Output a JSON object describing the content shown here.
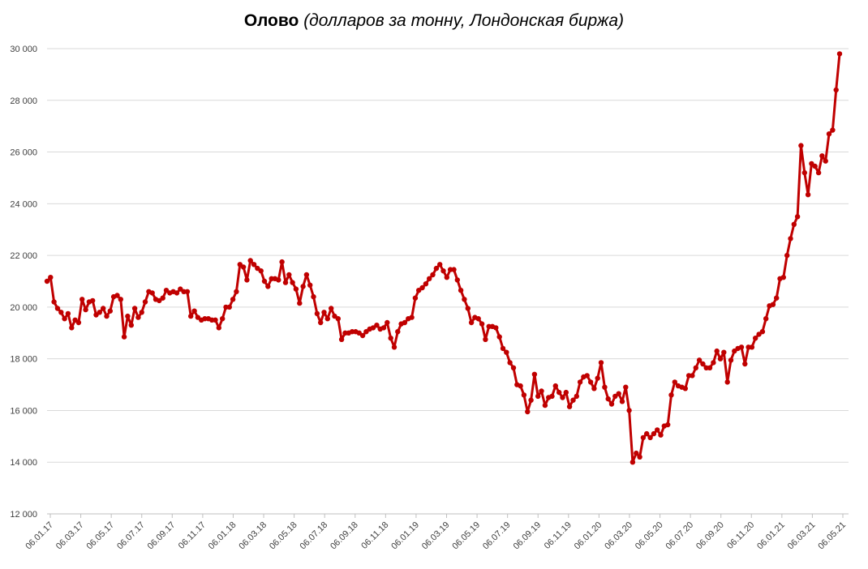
{
  "chart_data": {
    "type": "line",
    "title": "Олово",
    "subtitle": "(долларов за тонну, Лондонская биржа)",
    "xlabel": "",
    "ylabel": "",
    "ylim": [
      12000,
      30000
    ],
    "y_ticks": [
      12000,
      14000,
      16000,
      18000,
      20000,
      22000,
      24000,
      26000,
      28000,
      30000
    ],
    "y_tick_labels": [
      "12 000",
      "14 000",
      "16 000",
      "18 000",
      "20 000",
      "22 000",
      "24 000",
      "26 000",
      "28 000",
      "30 000"
    ],
    "x_tick_labels": [
      "06.01.17",
      "06.03.17",
      "06.05.17",
      "06.07.17",
      "06.09.17",
      "06.11.17",
      "06.01.18",
      "06.03.18",
      "06.05.18",
      "06.07.18",
      "06.09.18",
      "06.11.18",
      "06.01.19",
      "06.03.19",
      "06.05.19",
      "06.07.19",
      "06.09.19",
      "06.11.19",
      "06.01.20",
      "06.03.20",
      "06.05.20",
      "06.07.20",
      "06.09.20",
      "06.11.20",
      "06.01.21",
      "06.03.21",
      "06.05.21"
    ],
    "grid": true,
    "line_color": "#c00000",
    "series": [
      {
        "name": "",
        "values": [
          21000,
          21150,
          20200,
          19950,
          19800,
          19550,
          19750,
          19200,
          19500,
          19400,
          20300,
          19900,
          20200,
          20250,
          19700,
          19800,
          19950,
          19650,
          19850,
          20400,
          20450,
          20300,
          18850,
          19650,
          19300,
          19950,
          19600,
          19800,
          20200,
          20600,
          20550,
          20300,
          20250,
          20350,
          20650,
          20550,
          20600,
          20550,
          20700,
          20600,
          20600,
          19650,
          19850,
          19600,
          19500,
          19550,
          19550,
          19500,
          19500,
          19200,
          19550,
          20000,
          20000,
          20300,
          20600,
          21650,
          21550,
          21050,
          21800,
          21650,
          21500,
          21400,
          21000,
          20800,
          21100,
          21100,
          21050,
          21750,
          20950,
          21250,
          20950,
          20700,
          20150,
          20800,
          21250,
          20850,
          20400,
          19750,
          19400,
          19800,
          19550,
          19950,
          19650,
          19550,
          18750,
          19000,
          19000,
          19050,
          19050,
          19000,
          18900,
          19050,
          19150,
          19200,
          19300,
          19150,
          19200,
          19400,
          18800,
          18450,
          19050,
          19350,
          19400,
          19550,
          19600,
          20350,
          20650,
          20750,
          20900,
          21100,
          21250,
          21500,
          21650,
          21400,
          21150,
          21450,
          21450,
          21050,
          20650,
          20300,
          19950,
          19400,
          19600,
          19550,
          19350,
          18750,
          19250,
          19250,
          19200,
          18850,
          18400,
          18250,
          17850,
          17650,
          17000,
          16950,
          16600,
          15950,
          16400,
          17400,
          16550,
          16750,
          16200,
          16500,
          16550,
          16950,
          16700,
          16500,
          16700,
          16150,
          16400,
          16550,
          17100,
          17300,
          17350,
          17100,
          16850,
          17250,
          17850,
          16900,
          16450,
          16250,
          16550,
          16650,
          16350,
          16900,
          16000,
          14000,
          14350,
          14200,
          14950,
          15100,
          14950,
          15100,
          15250,
          15050,
          15400,
          15450,
          16600,
          17100,
          16950,
          16900,
          16850,
          17350,
          17350,
          17650,
          17950,
          17800,
          17650,
          17650,
          17850,
          18300,
          18000,
          18250,
          17100,
          17950,
          18300,
          18400,
          18450,
          17800,
          18450,
          18450,
          18800,
          18950,
          19050,
          19550,
          20050,
          20100,
          20350,
          21100,
          21150,
          22000,
          22650,
          23200,
          23500,
          26250,
          25200,
          24350,
          25550,
          25450,
          25200,
          25850,
          25650,
          26700,
          26850,
          28400,
          29800
        ]
      }
    ]
  }
}
